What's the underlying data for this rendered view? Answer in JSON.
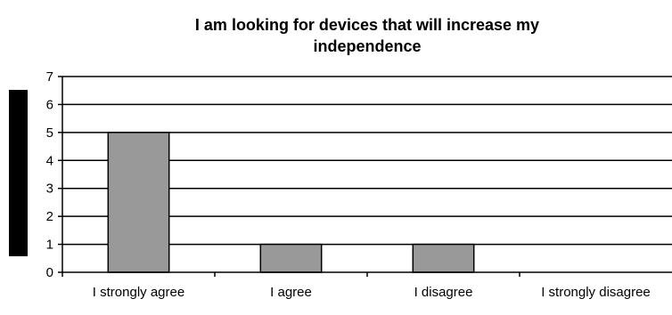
{
  "chart_data": {
    "type": "bar",
    "title_lines": [
      "I am looking for devices that will increase my",
      "independence"
    ],
    "categories": [
      "I strongly agree",
      "I agree",
      "I disagree",
      "I strongly disagree"
    ],
    "series": [
      {
        "values": [
          5,
          1,
          1,
          0
        ],
        "color": "#999999"
      }
    ],
    "ylim": [
      0,
      7
    ],
    "yticks": [
      0,
      1,
      2,
      3,
      4,
      5,
      6,
      7
    ],
    "grid": true,
    "legend": "left"
  }
}
